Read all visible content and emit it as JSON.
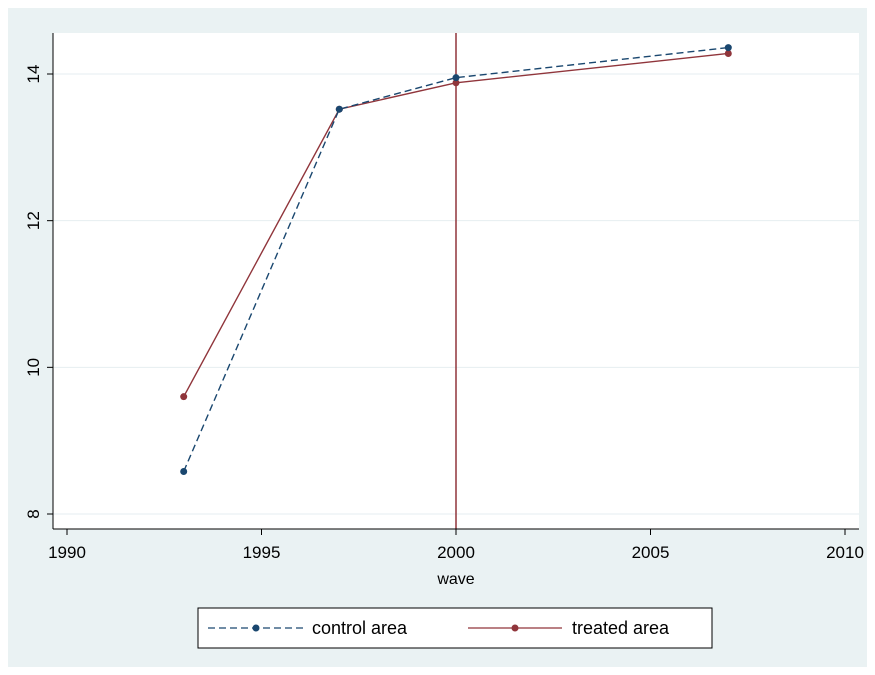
{
  "chart_data": {
    "type": "line",
    "xlabel": "wave",
    "ylabel": "",
    "xlim": [
      1990,
      2010
    ],
    "ylim": [
      7.8,
      14.6
    ],
    "xticks": [
      1990,
      1995,
      2000,
      2005,
      2010
    ],
    "yticks": [
      8,
      10,
      12,
      14
    ],
    "grid": true,
    "legend": "bottom",
    "vline": 2000,
    "colors": {
      "background": "#eaf2f3",
      "plot": "#ffffff",
      "grid": "#e6eef0",
      "control": "#1a476f",
      "treated": "#90353b"
    },
    "series": [
      {
        "name": "control area",
        "style": "dashed",
        "x": [
          1993,
          1997,
          2000,
          2007
        ],
        "y": [
          8.58,
          13.52,
          13.95,
          14.36
        ]
      },
      {
        "name": "treated area",
        "style": "solid",
        "x": [
          1993,
          1997,
          2000,
          2007
        ],
        "y": [
          9.6,
          13.52,
          13.88,
          14.28
        ]
      }
    ]
  }
}
